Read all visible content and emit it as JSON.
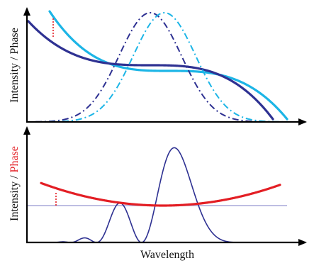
{
  "colors": {
    "axis": "#000000",
    "dark_blue": "#2e3192",
    "light_blue": "#1cb5e6",
    "red": "#e31e24",
    "baseline": "#a8a8d8"
  },
  "top_panel": {
    "ylabel": "Intensity / Phase",
    "curves": [
      {
        "kind": "phase",
        "style": "solid",
        "color": "dark_blue"
      },
      {
        "kind": "phase",
        "style": "solid",
        "color": "light_blue"
      },
      {
        "kind": "intensity",
        "style": "dash-dot",
        "color": "dark_blue"
      },
      {
        "kind": "intensity",
        "style": "dash-dot",
        "color": "light_blue"
      },
      {
        "kind": "marker",
        "style": "dotted",
        "color": "red"
      }
    ]
  },
  "bottom_panel": {
    "ylabel_part1": "Intensity / ",
    "ylabel_part2": "Phase",
    "xlabel": "Wavelength",
    "curves": [
      {
        "kind": "interference-signal",
        "style": "solid",
        "color": "dark_blue"
      },
      {
        "kind": "phase",
        "style": "solid",
        "color": "red"
      },
      {
        "kind": "baseline",
        "style": "solid",
        "color": "baseline"
      },
      {
        "kind": "marker",
        "style": "dotted",
        "color": "red"
      }
    ]
  }
}
